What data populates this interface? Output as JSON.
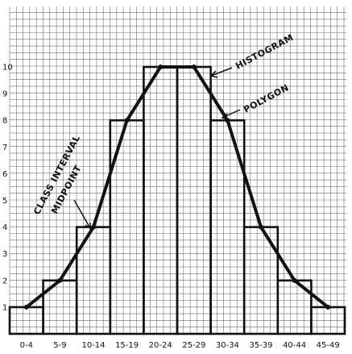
{
  "chart_data": {
    "type": "bar",
    "categories": [
      "0-4",
      "5-9",
      "10-14",
      "15-19",
      "20-24",
      "25-29",
      "30-34",
      "35-39",
      "40-44",
      "45-49"
    ],
    "values": [
      1,
      2,
      4,
      8,
      10,
      10,
      8,
      4,
      2,
      1
    ],
    "series": [
      {
        "type": "bar",
        "values": [
          1,
          2,
          4,
          8,
          10,
          10,
          8,
          4,
          2,
          1
        ]
      },
      {
        "type": "line",
        "values": [
          1,
          2,
          4,
          8,
          10,
          10,
          8,
          4,
          2,
          1
        ]
      }
    ],
    "yticks": [
      1,
      2,
      3,
      4,
      5,
      6,
      7,
      8,
      9,
      10
    ],
    "ylim": [
      0,
      11.5
    ],
    "grid": true,
    "annotations": [
      {
        "id": "histogram",
        "text": "HISTOGRAM"
      },
      {
        "id": "polygon",
        "text": "POLYGON"
      },
      {
        "id": "class-interval",
        "text": "CLASS INTERVAL"
      },
      {
        "id": "midpoint",
        "text": "MIDPOINT"
      }
    ],
    "colors": {
      "ink": "#111111",
      "grid": "#6f6f6f"
    }
  }
}
